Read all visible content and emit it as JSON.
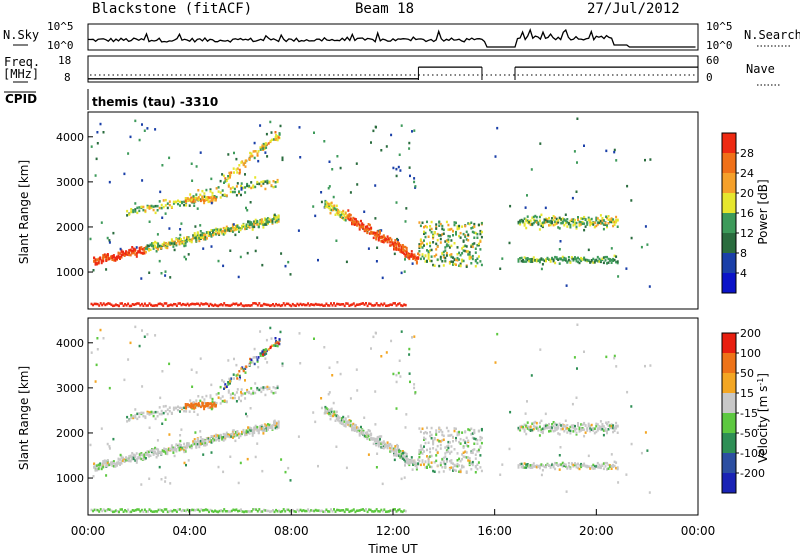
{
  "header": {
    "title": "Blackstone (fitACF)",
    "beam": "Beam 18",
    "date": "27/Jul/2012"
  },
  "colors": {
    "power_scale": [
      "#0b13c8",
      "#1a3fa8",
      "#2a6c3e",
      "#3d9a5a",
      "#e6e62e",
      "#f5a02a",
      "#f07018",
      "#ee2a12"
    ],
    "velocity_scale": [
      "#1a23b5",
      "#2c4fa1",
      "#2e8f55",
      "#5dc840",
      "#c8c8c8",
      "#f3a623",
      "#ee7318",
      "#e81f10"
    ]
  },
  "chart_data": [
    {
      "type": "line",
      "name": "noise-panel",
      "left_label": "N.Sky",
      "right_label": "N.Search",
      "left_ticks": [
        "10^5",
        "10^0"
      ],
      "right_ticks": [
        "10^5",
        "10^0"
      ],
      "xlim": [
        "00:00",
        "24:00"
      ]
    },
    {
      "type": "line",
      "name": "frequency-panel",
      "left_label": "Freq.",
      "left_unit": "[MHz]",
      "right_label": "Nave",
      "left_ticks": [
        18,
        8
      ],
      "right_ticks": [
        60,
        0
      ],
      "freq_steps": [
        {
          "start": 0.0,
          "end": 13.0,
          "value": 10
        },
        {
          "start": 13.0,
          "end": 15.5,
          "value": 14.5
        },
        {
          "start": 16.8,
          "end": 24.0,
          "value": 14.5
        }
      ],
      "xlim": [
        "00:00",
        "24:00"
      ]
    },
    {
      "type": "text",
      "name": "cpid-panel",
      "label": "CPID",
      "value": "themis (tau) -3310"
    },
    {
      "type": "heatmap",
      "name": "power",
      "ylabel": "Slant Range [km]",
      "xlabel": "",
      "yticks": [
        1000,
        2000,
        3000,
        4000
      ],
      "ylim": [
        180,
        4550
      ],
      "xlim": [
        0,
        24
      ],
      "colorbar_label": "Power [dB]",
      "colorbar_ticks": [
        4,
        8,
        12,
        16,
        20,
        24,
        28
      ]
    },
    {
      "type": "heatmap",
      "name": "velocity",
      "ylabel": "Slant Range [km]",
      "xlabel": "Time UT",
      "yticks": [
        1000,
        2000,
        3000,
        4000
      ],
      "ylim": [
        180,
        4550
      ],
      "xlim": [
        0,
        24
      ],
      "xticks": [
        "00:00",
        "04:00",
        "08:00",
        "12:00",
        "16:00",
        "20:00",
        "00:00"
      ],
      "colorbar_label": "Velocity [m s",
      "colorbar_label_sup": "-1",
      "colorbar_label_end": "]",
      "colorbar_ticks": [
        200,
        100,
        50,
        15,
        -15,
        -50,
        -100,
        -200
      ]
    }
  ]
}
